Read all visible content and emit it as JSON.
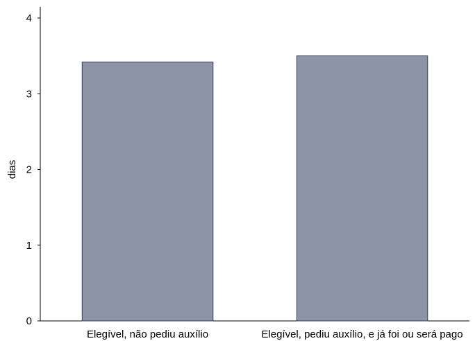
{
  "chart_data": {
    "type": "bar",
    "categories": [
      "Elegível, não pediu auxílio",
      "Elegível, pediu auxílio, e já foi ou será pago"
    ],
    "values": [
      3.42,
      3.5
    ],
    "ylabel": "dias",
    "xlabel": "",
    "ylim": [
      0,
      4
    ],
    "yticks": [
      0,
      1,
      2,
      3,
      4
    ],
    "grid": false,
    "legend": "none",
    "bar_color": "#8e94a8",
    "bar_edge_color": "#3a3f55"
  }
}
